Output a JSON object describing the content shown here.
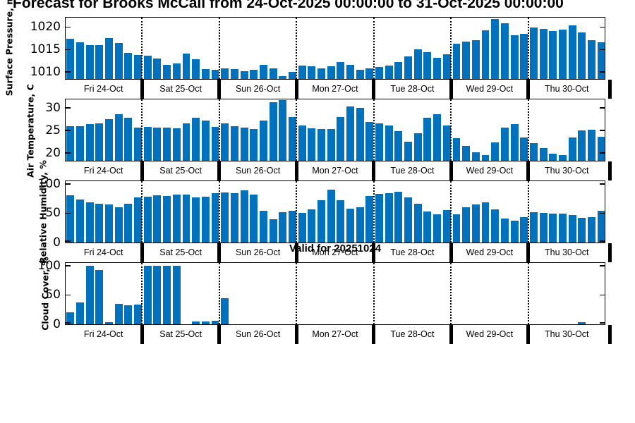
{
  "title": "Forecast for Brooks McCall from 24-Oct-2025 00:00:00 to 31-Oct-2025 00:00:00",
  "annotation": "Valid for 20251024",
  "colors": {
    "bar": "#0072BD",
    "axis": "#000000",
    "background": "#ffffff"
  },
  "day_labels": [
    "Fri 24-Oct",
    "Sat 25-Oct",
    "Sun 26-Oct",
    "Mon 27-Oct",
    "Tue 28-Oct",
    "Wed 29-Oct",
    "Thu 30-Oct"
  ],
  "x_axis": {
    "days": 7,
    "bars_per_day": 8
  },
  "chart_data": [
    {
      "type": "bar",
      "ylabel": "Surface Pressure, mb",
      "yticks": [
        1010,
        1015,
        1020
      ],
      "ylim": [
        1008.5,
        1022
      ],
      "values": [
        1017.5,
        1016.6,
        1016.1,
        1016.1,
        1017.6,
        1016.5,
        1014.3,
        1013.9,
        1013.7,
        1013.1,
        1011.6,
        1012.0,
        1014.1,
        1012.9,
        1010.7,
        1010.5,
        1010.9,
        1010.7,
        1010.2,
        1010.5,
        1011.7,
        1010.8,
        1009.2,
        1010.1,
        1011.5,
        1011.4,
        1010.8,
        1011.3,
        1012.3,
        1011.6,
        1010.5,
        1010.8,
        1011.2,
        1011.5,
        1012.3,
        1013.6,
        1015.1,
        1014.4,
        1013.2,
        1014.0,
        1016.3,
        1016.9,
        1017.2,
        1019.3,
        1021.9,
        1020.9,
        1018.3,
        1018.6,
        1019.9,
        1019.6,
        1019.2,
        1019.5,
        1020.4,
        1018.8,
        1017.1,
        1016.6
      ]
    },
    {
      "type": "bar",
      "ylabel": "Air Temperature, C",
      "yticks": [
        20,
        25,
        30
      ],
      "ylim": [
        18.3,
        31.8
      ],
      "values": [
        26.0,
        26.0,
        26.4,
        26.6,
        27.5,
        28.7,
        27.9,
        25.7,
        25.8,
        25.7,
        25.7,
        25.5,
        26.6,
        27.9,
        27.2,
        25.9,
        26.6,
        26.0,
        25.7,
        25.4,
        27.3,
        31.4,
        32.3,
        28.0,
        26.1,
        25.6,
        25.4,
        25.3,
        28.0,
        30.4,
        30.1,
        27.0,
        26.6,
        26.2,
        24.9,
        22.6,
        24.4,
        27.8,
        28.7,
        26.1,
        23.3,
        21.6,
        20.2,
        19.5,
        22.4,
        25.7,
        26.4,
        23.5,
        22.3,
        21.1,
        19.8,
        19.6,
        23.5,
        25.0,
        25.2,
        23.6
      ]
    },
    {
      "type": "bar",
      "ylabel": "Relative Humidity, %",
      "yticks": [
        0,
        50,
        100
      ],
      "ylim": [
        0,
        104
      ],
      "values": [
        81,
        74,
        69,
        67,
        65,
        61,
        66,
        77,
        79,
        81,
        80,
        82,
        82,
        78,
        79,
        85,
        86,
        85,
        90,
        82,
        55,
        40,
        52,
        55,
        51,
        57,
        73,
        91,
        72,
        58,
        60,
        80,
        83,
        85,
        87,
        77,
        67,
        53,
        48,
        56,
        48,
        60,
        65,
        69,
        57,
        41,
        37,
        44,
        52,
        51,
        50,
        49,
        47,
        42,
        43,
        54
      ]
    },
    {
      "type": "bar",
      "ylabel": "Cloud Cover, %",
      "yticks": [
        0,
        50,
        100
      ],
      "ylim": [
        0,
        104
      ],
      "values": [
        20,
        37,
        100,
        93,
        4,
        35,
        33,
        34,
        100,
        100,
        100,
        100,
        0,
        5,
        5,
        6,
        45,
        0,
        0,
        0,
        0,
        0,
        0,
        0,
        0,
        0,
        0,
        0,
        0,
        0,
        0,
        0,
        0,
        0,
        0,
        0,
        0,
        0,
        0,
        0,
        0,
        0,
        0,
        0,
        0,
        0,
        0,
        0,
        0,
        0,
        0,
        0,
        0,
        4,
        0,
        0
      ]
    }
  ]
}
